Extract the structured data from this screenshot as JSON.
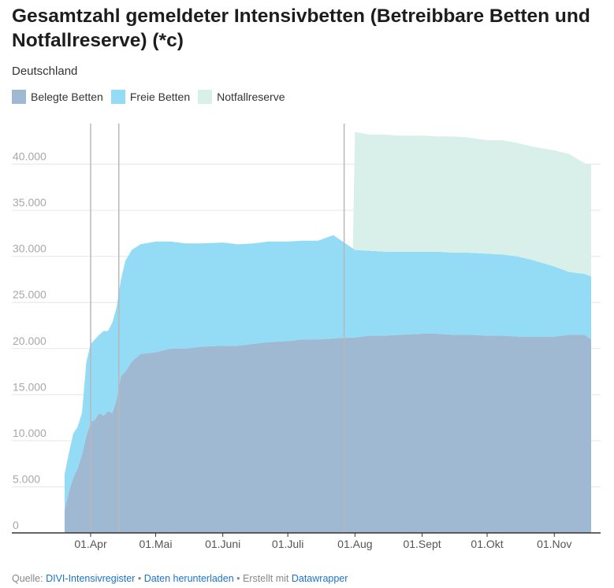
{
  "header": {
    "title": "Gesamtzahl gemeldeter Intensivbetten (Betreibbare Betten und Notfallreserve) (*c)",
    "subtitle": "Deutschland"
  },
  "legend": [
    {
      "label": "Belegte Betten",
      "color": "#a0b9d3"
    },
    {
      "label": "Freie Betten",
      "color": "#94dbf6"
    },
    {
      "label": "Notfallreserve",
      "color": "#d9f0ea"
    }
  ],
  "footer": {
    "source_label": "Quelle:",
    "source_link": "DIVI-Intensivregister",
    "separator": "•",
    "download_link": "Daten herunterladen",
    "created_text": "Erstellt mit",
    "tool_link": "Datawrapper"
  },
  "chart_data": {
    "type": "area",
    "stacked": true,
    "grid": true,
    "legend_position": "top-left",
    "title": "Gesamtzahl gemeldeter Intensivbetten (Betreibbare Betten und Notfallreserve) (*c)",
    "subtitle": "Deutschland",
    "xlabel": "",
    "ylabel": "",
    "ylim": [
      0,
      45000
    ],
    "xlim": [
      "2020-03-20",
      "2020-11-18"
    ],
    "x_ticks": [
      {
        "date": "2020-04-01",
        "label": "01.Apr"
      },
      {
        "date": "2020-05-01",
        "label": "01.Mai"
      },
      {
        "date": "2020-06-01",
        "label": "01.Juni"
      },
      {
        "date": "2020-07-01",
        "label": "01.Juli"
      },
      {
        "date": "2020-08-01",
        "label": "01.Aug"
      },
      {
        "date": "2020-09-01",
        "label": "01.Sept"
      },
      {
        "date": "2020-10-01",
        "label": "01.Okt"
      },
      {
        "date": "2020-11-01",
        "label": "01.Nov"
      }
    ],
    "y_ticks": [
      {
        "value": 0,
        "label": "0"
      },
      {
        "value": 5000,
        "label": "5.000"
      },
      {
        "value": 10000,
        "label": "10.000"
      },
      {
        "value": 15000,
        "label": "15.000"
      },
      {
        "value": 20000,
        "label": "20.000"
      },
      {
        "value": 25000,
        "label": "25.000"
      },
      {
        "value": 30000,
        "label": "30.000"
      },
      {
        "value": 35000,
        "label": "35.000"
      },
      {
        "value": 40000,
        "label": "40.000"
      }
    ],
    "vertical_markers": [
      "2020-04-01",
      "2020-04-14",
      "2020-07-27"
    ],
    "series": [
      {
        "name": "Belegte Betten",
        "color": "#a0b9d3",
        "points": [
          [
            "2020-03-20",
            2500
          ],
          [
            "2020-03-22",
            4500
          ],
          [
            "2020-03-24",
            6000
          ],
          [
            "2020-03-26",
            7000
          ],
          [
            "2020-03-28",
            8500
          ],
          [
            "2020-03-30",
            10500
          ],
          [
            "2020-04-01",
            12000
          ],
          [
            "2020-04-03",
            12300
          ],
          [
            "2020-04-05",
            13000
          ],
          [
            "2020-04-07",
            12700
          ],
          [
            "2020-04-09",
            13200
          ],
          [
            "2020-04-11",
            13000
          ],
          [
            "2020-04-13",
            14500
          ],
          [
            "2020-04-15",
            17000
          ],
          [
            "2020-04-17",
            17500
          ],
          [
            "2020-04-20",
            18600
          ],
          [
            "2020-04-24",
            19400
          ],
          [
            "2020-05-01",
            19600
          ],
          [
            "2020-05-08",
            20000
          ],
          [
            "2020-05-15",
            20000
          ],
          [
            "2020-05-22",
            20200
          ],
          [
            "2020-06-01",
            20300
          ],
          [
            "2020-06-08",
            20300
          ],
          [
            "2020-06-15",
            20500
          ],
          [
            "2020-06-22",
            20700
          ],
          [
            "2020-07-01",
            20800
          ],
          [
            "2020-07-08",
            21000
          ],
          [
            "2020-07-15",
            21000
          ],
          [
            "2020-07-22",
            21100
          ],
          [
            "2020-08-01",
            21200
          ],
          [
            "2020-08-08",
            21400
          ],
          [
            "2020-08-15",
            21400
          ],
          [
            "2020-08-22",
            21500
          ],
          [
            "2020-09-01",
            21600
          ],
          [
            "2020-09-08",
            21600
          ],
          [
            "2020-09-15",
            21500
          ],
          [
            "2020-09-22",
            21500
          ],
          [
            "2020-10-01",
            21400
          ],
          [
            "2020-10-08",
            21400
          ],
          [
            "2020-10-15",
            21300
          ],
          [
            "2020-10-22",
            21300
          ],
          [
            "2020-11-01",
            21300
          ],
          [
            "2020-11-08",
            21500
          ],
          [
            "2020-11-15",
            21500
          ],
          [
            "2020-11-18",
            21000
          ]
        ]
      },
      {
        "name": "Freie Betten",
        "color": "#94dbf6",
        "points": [
          [
            "2020-03-20",
            3900
          ],
          [
            "2020-03-22",
            4200
          ],
          [
            "2020-03-24",
            4800
          ],
          [
            "2020-03-26",
            4500
          ],
          [
            "2020-03-28",
            4500
          ],
          [
            "2020-03-30",
            8000
          ],
          [
            "2020-04-01",
            8500
          ],
          [
            "2020-04-03",
            8700
          ],
          [
            "2020-04-05",
            8500
          ],
          [
            "2020-04-07",
            9200
          ],
          [
            "2020-04-09",
            8700
          ],
          [
            "2020-04-11",
            9800
          ],
          [
            "2020-04-13",
            10000
          ],
          [
            "2020-04-15",
            10500
          ],
          [
            "2020-04-17",
            12000
          ],
          [
            "2020-04-20",
            12100
          ],
          [
            "2020-04-24",
            11900
          ],
          [
            "2020-05-01",
            12000
          ],
          [
            "2020-05-08",
            11600
          ],
          [
            "2020-05-15",
            11400
          ],
          [
            "2020-05-22",
            11200
          ],
          [
            "2020-06-01",
            11200
          ],
          [
            "2020-06-08",
            11000
          ],
          [
            "2020-06-15",
            10900
          ],
          [
            "2020-06-22",
            10900
          ],
          [
            "2020-07-01",
            10800
          ],
          [
            "2020-07-08",
            10700
          ],
          [
            "2020-07-15",
            10700
          ],
          [
            "2020-07-22",
            11200
          ],
          [
            "2020-08-01",
            9500
          ],
          [
            "2020-08-08",
            9200
          ],
          [
            "2020-08-15",
            9100
          ],
          [
            "2020-08-22",
            9000
          ],
          [
            "2020-09-01",
            8900
          ],
          [
            "2020-09-08",
            8900
          ],
          [
            "2020-09-15",
            8900
          ],
          [
            "2020-09-22",
            8900
          ],
          [
            "2020-10-01",
            8900
          ],
          [
            "2020-10-08",
            8800
          ],
          [
            "2020-10-15",
            8700
          ],
          [
            "2020-10-22",
            8300
          ],
          [
            "2020-11-01",
            7600
          ],
          [
            "2020-11-08",
            6800
          ],
          [
            "2020-11-15",
            6600
          ],
          [
            "2020-11-18",
            6800
          ]
        ]
      },
      {
        "name": "Notfallreserve",
        "color": "#d9f0ea",
        "points": [
          [
            "2020-03-20",
            0
          ],
          [
            "2020-07-31",
            0
          ],
          [
            "2020-08-01",
            12800
          ],
          [
            "2020-08-08",
            12600
          ],
          [
            "2020-08-15",
            12700
          ],
          [
            "2020-08-22",
            12600
          ],
          [
            "2020-09-01",
            12600
          ],
          [
            "2020-09-08",
            12500
          ],
          [
            "2020-09-15",
            12600
          ],
          [
            "2020-09-22",
            12500
          ],
          [
            "2020-10-01",
            12300
          ],
          [
            "2020-10-08",
            12400
          ],
          [
            "2020-10-15",
            12300
          ],
          [
            "2020-10-22",
            12300
          ],
          [
            "2020-11-01",
            12600
          ],
          [
            "2020-11-08",
            12800
          ],
          [
            "2020-11-15",
            12000
          ],
          [
            "2020-11-18",
            12200
          ]
        ]
      }
    ]
  }
}
